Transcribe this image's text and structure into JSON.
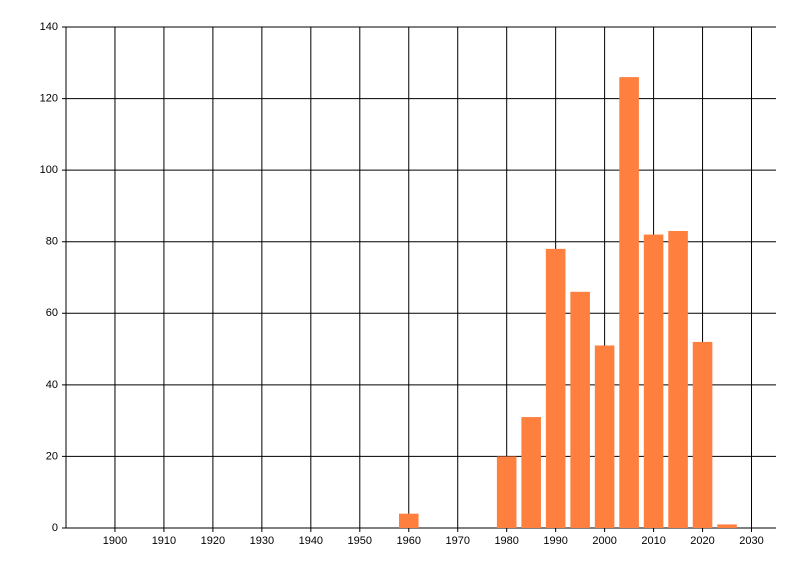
{
  "chart_data": {
    "type": "bar",
    "x": [
      1960,
      1980,
      1985,
      1990,
      1995,
      2000,
      2005,
      2010,
      2015,
      2020,
      2025
    ],
    "values": [
      4,
      20,
      31,
      78,
      66,
      51,
      126,
      82,
      83,
      52,
      1
    ],
    "color": "#ff7f3f",
    "xlim": [
      1890,
      2035
    ],
    "xticks": [
      1900,
      1910,
      1920,
      1930,
      1940,
      1950,
      1960,
      1970,
      1980,
      1990,
      2000,
      2010,
      2020,
      2030
    ],
    "ylim": [
      0,
      140
    ],
    "yticks": [
      0,
      20,
      40,
      60,
      80,
      100,
      120,
      140
    ],
    "grid": true
  }
}
